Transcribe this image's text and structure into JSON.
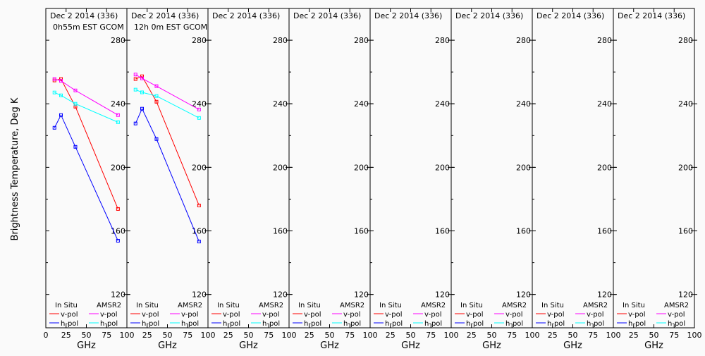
{
  "chart_data": {
    "type": "line",
    "ylabel": "Brightness Temperature, Deg K",
    "xlabel": "GHz",
    "xlim": [
      0,
      100
    ],
    "ylim": [
      99,
      300
    ],
    "xticks": [
      0,
      25,
      50,
      75,
      100
    ],
    "yticks": [
      120,
      160,
      200,
      240,
      280
    ],
    "colors": {
      "insitu_v": "#ff0000",
      "insitu_h": "#0000ff",
      "amsr2_v": "#ff00ff",
      "amsr2_h": "#00ffff"
    },
    "legend": {
      "insitu_title": "In Situ",
      "amsr2_title": "AMSR2",
      "v": "v-pol",
      "h": "h-pol",
      "placement": "bottom"
    },
    "x": [
      10.65,
      18.7,
      36.5,
      89.0
    ],
    "panels": [
      {
        "title1": "Dec 2 2014 (336)",
        "title2": "0h55m EST GCOM",
        "series": [
          {
            "name": "In Situ v-pol",
            "key": "insitu_v",
            "values": [
              254.7,
              255.6,
              238.2,
              173.8
            ]
          },
          {
            "name": "In Situ h-pol",
            "key": "insitu_h",
            "values": [
              224.9,
              232.9,
              212.9,
              153.8
            ]
          },
          {
            "name": "AMSR2 v-pol",
            "key": "amsr2_v",
            "values": [
              255.6,
              254.4,
              248.4,
              232.9
            ]
          },
          {
            "name": "AMSR2 h-pol",
            "key": "amsr2_h",
            "values": [
              247.1,
              245.3,
              240.0,
              228.4
            ]
          }
        ]
      },
      {
        "title1": "Dec 2 2014 (336)",
        "title2": "12h 0m EST GCOM",
        "series": [
          {
            "name": "In Situ v-pol",
            "key": "insitu_v",
            "values": [
              255.6,
              257.3,
              241.3,
              176.0
            ]
          },
          {
            "name": "In Situ h-pol",
            "key": "insitu_h",
            "values": [
              227.6,
              236.9,
              217.8,
              153.3
            ]
          },
          {
            "name": "AMSR2 v-pol",
            "key": "amsr2_v",
            "values": [
              258.4,
              256.0,
              251.1,
              236.4
            ]
          },
          {
            "name": "AMSR2 h-pol",
            "key": "amsr2_h",
            "values": [
              248.9,
              247.2,
              244.9,
              231.1
            ]
          }
        ]
      },
      {
        "title1": "Dec 2 2014 (336)",
        "title2": "",
        "series": []
      },
      {
        "title1": "Dec 2 2014 (336)",
        "title2": "",
        "series": []
      },
      {
        "title1": "Dec 2 2014 (336)",
        "title2": "",
        "series": []
      },
      {
        "title1": "Dec 2 2014 (336)",
        "title2": "",
        "series": []
      },
      {
        "title1": "Dec 2 2014 (336)",
        "title2": "",
        "series": []
      },
      {
        "title1": "Dec 2 2014 (336)",
        "title2": "",
        "series": []
      }
    ]
  }
}
